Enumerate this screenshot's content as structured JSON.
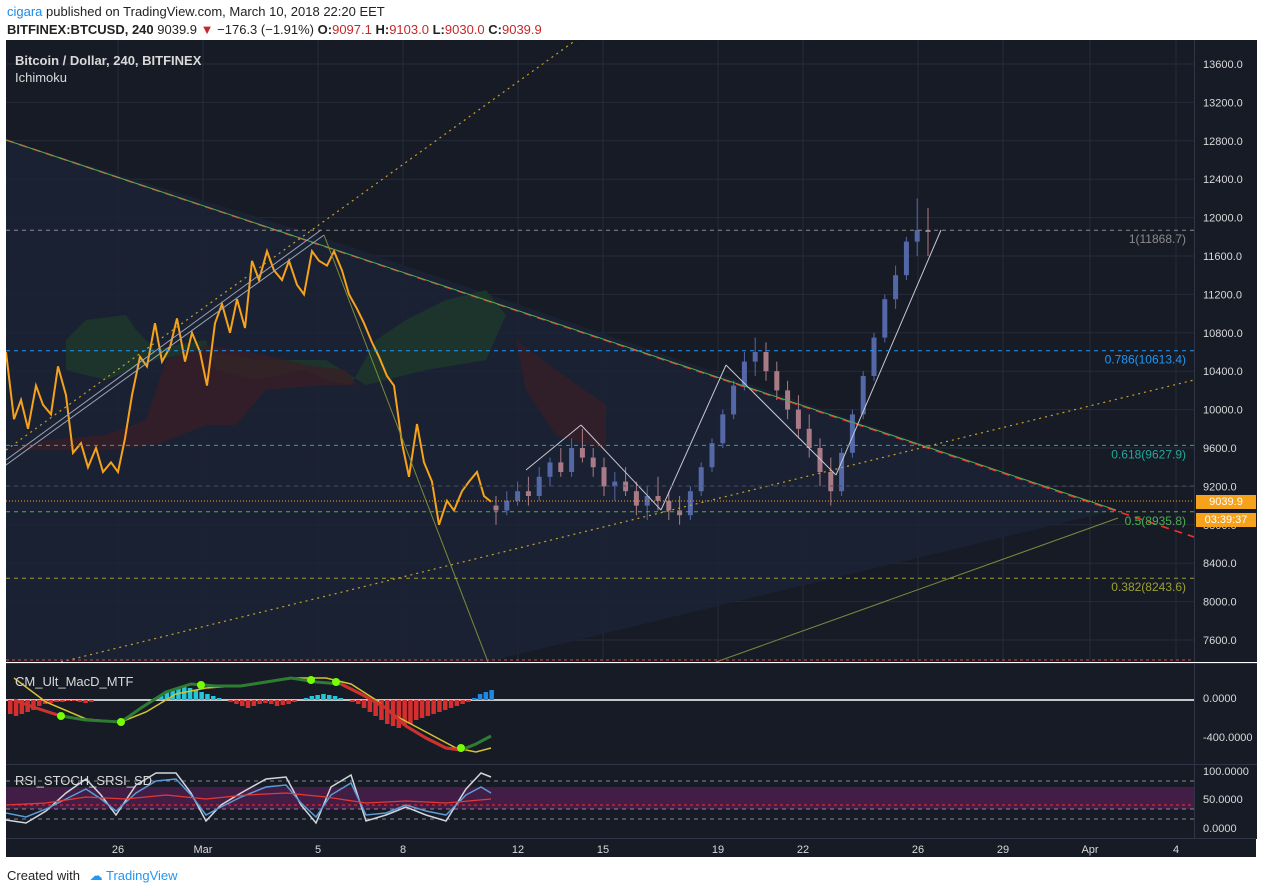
{
  "header": {
    "publisher": "cigara",
    "published_text": "published on TradingView.com, March 10, 2018 22:20 EET",
    "symbol": "BITFINEX:BTCUSD, 240",
    "last": "9039.9",
    "change": "−176.3 (−1.91%)",
    "o_label": "O:",
    "o": "9097.1",
    "h_label": "H:",
    "h": "9103.0",
    "l_label": "L:",
    "l": "9030.0",
    "c_label": "C:",
    "c": "9039.9"
  },
  "main_pane": {
    "title": "Bitcoin / Dollar, 240, BITFINEX",
    "indicator": "Ichimoku",
    "price_badge": "9039.9",
    "timer_badge": "03:39:37"
  },
  "fib_labels": [
    {
      "text": "1(11868.7)",
      "value": 11868.7,
      "color": "#8c8c8c"
    },
    {
      "text": "0.786(10613.4)",
      "value": 10613.4,
      "color": "#2196f3"
    },
    {
      "text": "0.618(9627.9)",
      "value": 9627.9,
      "color": "#26a69a"
    },
    {
      "text": "0.5(8935.8)",
      "value": 8935.8,
      "color": "#4caf50"
    },
    {
      "text": "0.382(8243.6)",
      "value": 8243.6,
      "color": "#9ca032"
    }
  ],
  "macd_pane": {
    "title": "CM_Ult_MacD_MTF",
    "axis_labels": [
      "0.0000",
      "-400.0000"
    ]
  },
  "rsi_pane": {
    "title": "RSI_STOCH_SRSI_SD",
    "axis_labels": [
      "100.0000",
      "50.0000",
      "0.0000"
    ]
  },
  "footer": {
    "created_with": "Created with",
    "brand": "TradingView"
  },
  "chart_data": {
    "type": "line",
    "title": "Bitcoin / Dollar, 240, BITFINEX",
    "xlabel": "",
    "ylabel": "",
    "ylim": [
      7200,
      13800
    ],
    "y_ticks": [
      13600,
      13200,
      12800,
      12400,
      12000,
      11600,
      11200,
      10800,
      10400,
      10000,
      9600,
      9200,
      8800,
      8400,
      8000,
      7600
    ],
    "y_tick_labels": [
      "13600.0",
      "13200.0",
      "12800.0",
      "12400.0",
      "12000.0",
      "11600.0",
      "11200.0",
      "10800.0",
      "10400.0",
      "10000.0",
      "9600.0",
      "9200.0",
      "8800.0",
      "8400.0",
      "8000.0",
      "7600.0"
    ],
    "x_tick_labels": [
      "26",
      "Mar",
      "5",
      "8",
      "12",
      "15",
      "19",
      "22",
      "26",
      "29",
      "Apr",
      "4"
    ],
    "grid": true,
    "series": [
      {
        "color": "#f7a21b",
        "points": [
          [
            0,
            10600
          ],
          [
            8,
            9900
          ],
          [
            15,
            10100
          ],
          [
            22,
            9800
          ],
          [
            30,
            10250
          ],
          [
            37,
            10050
          ],
          [
            45,
            9950
          ],
          [
            52,
            10450
          ],
          [
            60,
            10150
          ],
          [
            67,
            9550
          ],
          [
            75,
            9650
          ],
          [
            82,
            9400
          ],
          [
            90,
            9600
          ],
          [
            97,
            9350
          ],
          [
            105,
            9450
          ],
          [
            112,
            9350
          ],
          [
            119,
            9700
          ],
          [
            126,
            10150
          ],
          [
            134,
            10550
          ],
          [
            141,
            10450
          ],
          [
            149,
            10900
          ],
          [
            156,
            10500
          ],
          [
            164,
            10650
          ],
          [
            171,
            10950
          ],
          [
            179,
            10500
          ],
          [
            186,
            10800
          ],
          [
            194,
            10600
          ],
          [
            201,
            10250
          ],
          [
            209,
            10900
          ],
          [
            216,
            11100
          ],
          [
            224,
            10800
          ],
          [
            231,
            11150
          ],
          [
            239,
            10850
          ],
          [
            246,
            11550
          ],
          [
            253,
            11350
          ],
          [
            261,
            11650
          ],
          [
            268,
            11450
          ],
          [
            276,
            11350
          ],
          [
            283,
            11550
          ],
          [
            291,
            11300
          ],
          [
            298,
            11200
          ],
          [
            306,
            11650
          ],
          [
            313,
            11550
          ],
          [
            321,
            11500
          ],
          [
            328,
            11650
          ],
          [
            336,
            11450
          ],
          [
            343,
            11200
          ],
          [
            351,
            11050
          ],
          [
            358,
            10900
          ],
          [
            366,
            10700
          ],
          [
            373,
            10550
          ],
          [
            381,
            10350
          ],
          [
            388,
            10250
          ],
          [
            396,
            9650
          ],
          [
            403,
            9300
          ],
          [
            411,
            9850
          ],
          [
            418,
            9450
          ],
          [
            426,
            9250
          ],
          [
            433,
            8800
          ],
          [
            441,
            9050
          ],
          [
            448,
            8950
          ],
          [
            456,
            9150
          ],
          [
            463,
            9250
          ],
          [
            471,
            9350
          ],
          [
            478,
            9100
          ],
          [
            485,
            9040
          ]
        ]
      }
    ],
    "candles": {
      "color_up": "#5468a8",
      "color_down": "#a97b86",
      "ohlc": [
        [
          9000,
          9100,
          8800,
          8950
        ],
        [
          8950,
          9150,
          8900,
          9050
        ],
        [
          9050,
          9250,
          9000,
          9150
        ],
        [
          9150,
          9300,
          9000,
          9100
        ],
        [
          9100,
          9400,
          9050,
          9300
        ],
        [
          9300,
          9500,
          9200,
          9450
        ],
        [
          9450,
          9600,
          9300,
          9350
        ],
        [
          9350,
          9700,
          9300,
          9600
        ],
        [
          9600,
          9800,
          9450,
          9500
        ],
        [
          9500,
          9600,
          9300,
          9400
        ],
        [
          9400,
          9500,
          9100,
          9200
        ],
        [
          9200,
          9350,
          9050,
          9250
        ],
        [
          9250,
          9400,
          9100,
          9150
        ],
        [
          9150,
          9250,
          8900,
          9000
        ],
        [
          9000,
          9200,
          8850,
          9100
        ],
        [
          9100,
          9300,
          8950,
          9050
        ],
        [
          9050,
          9150,
          8850,
          8950
        ],
        [
          8950,
          9100,
          8800,
          8900
        ],
        [
          8900,
          9200,
          8850,
          9150
        ],
        [
          9150,
          9450,
          9100,
          9400
        ],
        [
          9400,
          9700,
          9350,
          9650
        ],
        [
          9650,
          10000,
          9600,
          9950
        ],
        [
          9950,
          10300,
          9900,
          10250
        ],
        [
          10250,
          10600,
          10200,
          10500
        ],
        [
          10500,
          10750,
          10350,
          10600
        ],
        [
          10600,
          10700,
          10300,
          10400
        ],
        [
          10400,
          10500,
          10100,
          10200
        ],
        [
          10200,
          10300,
          9900,
          10000
        ],
        [
          10000,
          10150,
          9700,
          9800
        ],
        [
          9800,
          9950,
          9500,
          9600
        ],
        [
          9600,
          9700,
          9200,
          9350
        ],
        [
          9350,
          9500,
          9000,
          9150
        ],
        [
          9150,
          9600,
          9100,
          9550
        ],
        [
          9550,
          10000,
          9500,
          9950
        ],
        [
          9950,
          10400,
          9900,
          10350
        ],
        [
          10350,
          10800,
          10300,
          10750
        ],
        [
          10750,
          11200,
          10700,
          11150
        ],
        [
          11150,
          11500,
          11050,
          11400
        ],
        [
          11400,
          11800,
          11350,
          11750
        ],
        [
          11750,
          12200,
          11600,
          11870
        ],
        [
          11870,
          12100,
          11600,
          11850
        ]
      ]
    }
  }
}
